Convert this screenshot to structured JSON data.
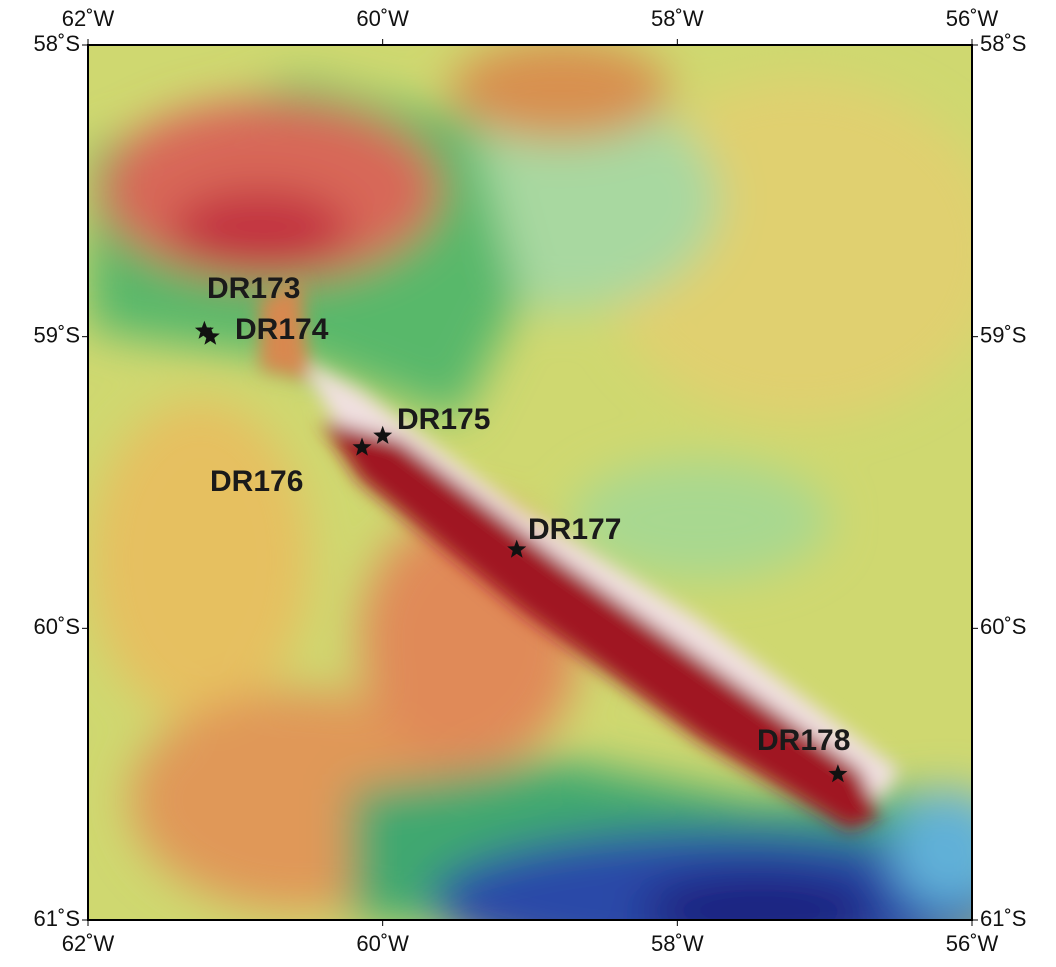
{
  "chart_data": {
    "type": "map",
    "xlim": [
      -62,
      -56
    ],
    "ylim": [
      -61,
      -58
    ],
    "xticks": [
      {
        "value": -62,
        "label": "62˚W"
      },
      {
        "value": -60,
        "label": "60˚W"
      },
      {
        "value": -58,
        "label": "58˚W"
      },
      {
        "value": -56,
        "label": "56˚W"
      }
    ],
    "yticks": [
      {
        "value": -58,
        "label": "58˚S"
      },
      {
        "value": -59,
        "label": "59˚S"
      },
      {
        "value": -60,
        "label": "60˚S"
      },
      {
        "value": -61,
        "label": "61˚S"
      }
    ],
    "stations": [
      {
        "name": "DR173",
        "lon": -61.21,
        "lat": -58.98
      },
      {
        "name": "DR174",
        "lon": -61.17,
        "lat": -59.0
      },
      {
        "name": "DR175",
        "lon": -60.0,
        "lat": -59.34
      },
      {
        "name": "DR176",
        "lon": -60.14,
        "lat": -59.38
      },
      {
        "name": "DR177",
        "lon": -59.09,
        "lat": -59.73
      },
      {
        "name": "DR178",
        "lon": -56.91,
        "lat": -60.5
      }
    ],
    "marker_color": "#111111"
  }
}
